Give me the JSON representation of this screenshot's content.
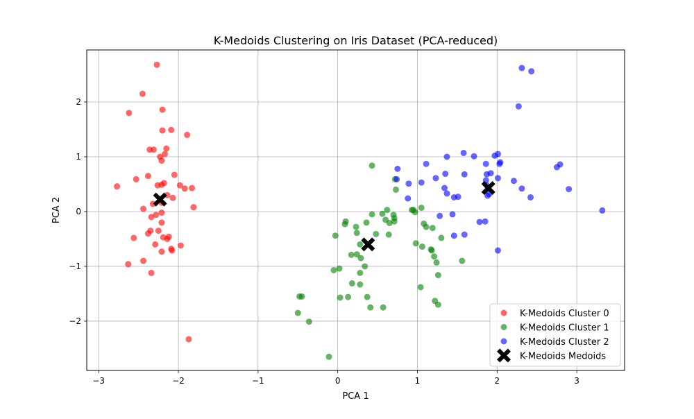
{
  "chart_data": {
    "type": "scatter",
    "title": "K-Medoids Clustering on Iris Dataset (PCA-reduced)",
    "xlabel": "PCA 1",
    "ylabel": "PCA 2",
    "xlim": [
      -3.15,
      3.6
    ],
    "ylim": [
      -2.9,
      2.95
    ],
    "xticks": [
      -3,
      -2,
      -1,
      0,
      1,
      2,
      3
    ],
    "yticks": [
      -2,
      -1,
      0,
      1,
      2
    ],
    "grid": true,
    "legend_position": "lower-right",
    "series": [
      {
        "name": "K-Medoids Cluster 0",
        "color": "#ff0000",
        "marker": "circle",
        "points": [
          [
            -2.27,
            2.68
          ],
          [
            -2.45,
            2.15
          ],
          [
            -2.62,
            1.8
          ],
          [
            -2.2,
            1.86
          ],
          [
            -2.2,
            1.48
          ],
          [
            -2.09,
            1.49
          ],
          [
            -1.89,
            1.4
          ],
          [
            -2.36,
            1.13
          ],
          [
            -2.31,
            1.13
          ],
          [
            -2.15,
            1.15
          ],
          [
            -2.17,
            1.05
          ],
          [
            -2.23,
            1.0
          ],
          [
            -2.21,
            0.93
          ],
          [
            -2.38,
            0.65
          ],
          [
            -2.05,
            0.67
          ],
          [
            -2.53,
            0.59
          ],
          [
            -2.77,
            0.46
          ],
          [
            -2.18,
            0.52
          ],
          [
            -2.21,
            0.49
          ],
          [
            -2.26,
            0.48
          ],
          [
            -1.98,
            0.48
          ],
          [
            -1.92,
            0.42
          ],
          [
            -1.83,
            0.43
          ],
          [
            -2.14,
            0.3
          ],
          [
            -2.07,
            0.25
          ],
          [
            -2.21,
            0.16
          ],
          [
            -2.32,
            0.14
          ],
          [
            -1.81,
            0.08
          ],
          [
            -2.44,
            0.05
          ],
          [
            -2.21,
            -0.02
          ],
          [
            -2.28,
            -0.06
          ],
          [
            -2.34,
            -0.1
          ],
          [
            -2.21,
            -0.2
          ],
          [
            -2.25,
            -0.35
          ],
          [
            -2.35,
            -0.35
          ],
          [
            -2.38,
            -0.4
          ],
          [
            -2.56,
            -0.48
          ],
          [
            -2.19,
            -0.47
          ],
          [
            -2.12,
            -0.46
          ],
          [
            -2.14,
            -0.5
          ],
          [
            -2.29,
            -0.6
          ],
          [
            -1.97,
            -0.62
          ],
          [
            -2.09,
            -0.68
          ],
          [
            -2.08,
            -0.71
          ],
          [
            -2.21,
            -0.73
          ],
          [
            -2.44,
            -0.9
          ],
          [
            -2.63,
            -0.96
          ],
          [
            -2.34,
            -1.12
          ],
          [
            -1.87,
            -2.33
          ]
        ]
      },
      {
        "name": "K-Medoids Cluster 1",
        "color": "#008000",
        "marker": "circle",
        "points": [
          [
            0.43,
            0.84
          ],
          [
            0.72,
            0.59
          ],
          [
            0.73,
            0.4
          ],
          [
            0.62,
            0.03
          ],
          [
            0.95,
            0.03
          ],
          [
            0.93,
            0.03
          ],
          [
            0.97,
            -0.01
          ],
          [
            0.43,
            -0.05
          ],
          [
            0.56,
            -0.04
          ],
          [
            0.7,
            -0.06
          ],
          [
            0.71,
            -0.12
          ],
          [
            0.6,
            -0.15
          ],
          [
            0.65,
            -0.21
          ],
          [
            0.71,
            -0.18
          ],
          [
            1.05,
            0.07
          ],
          [
            1.08,
            -0.22
          ],
          [
            1.11,
            -0.28
          ],
          [
            1.19,
            -0.3
          ],
          [
            0.1,
            -0.18
          ],
          [
            0.09,
            -0.23
          ],
          [
            0.23,
            -0.28
          ],
          [
            0.36,
            -0.2
          ],
          [
            0.24,
            -0.39
          ],
          [
            0.48,
            -0.41
          ],
          [
            0.64,
            -0.42
          ],
          [
            1.3,
            -0.48
          ],
          [
            0.98,
            -0.58
          ],
          [
            0.28,
            -0.6
          ],
          [
            1.06,
            -0.64
          ],
          [
            -0.03,
            -0.44
          ],
          [
            1.17,
            -0.69
          ],
          [
            1.18,
            -0.71
          ],
          [
            0.17,
            -0.79
          ],
          [
            0.24,
            -0.78
          ],
          [
            1.21,
            -0.82
          ],
          [
            0.29,
            -0.85
          ],
          [
            1.24,
            -0.93
          ],
          [
            1.56,
            -0.9
          ],
          [
            0.34,
            -1.0
          ],
          [
            -0.05,
            -1.07
          ],
          [
            0.02,
            -1.04
          ],
          [
            0.28,
            -1.12
          ],
          [
            1.26,
            -1.16
          ],
          [
            0.18,
            -1.31
          ],
          [
            0.28,
            -1.33
          ],
          [
            1.04,
            -1.38
          ],
          [
            -0.45,
            -1.55
          ],
          [
            -0.48,
            -1.55
          ],
          [
            0.03,
            -1.57
          ],
          [
            0.13,
            -1.56
          ],
          [
            0.37,
            -1.56
          ],
          [
            1.22,
            -1.63
          ],
          [
            1.26,
            -1.7
          ],
          [
            0.41,
            -1.75
          ],
          [
            0.57,
            -1.75
          ],
          [
            -0.5,
            -1.85
          ],
          [
            -0.36,
            -2.01
          ],
          [
            -0.11,
            -2.65
          ]
        ]
      },
      {
        "name": "K-Medoids Cluster 2",
        "color": "#0000ff",
        "marker": "circle",
        "points": [
          [
            2.31,
            2.62
          ],
          [
            2.43,
            2.56
          ],
          [
            2.27,
            1.92
          ],
          [
            1.58,
            1.07
          ],
          [
            2.01,
            1.05
          ],
          [
            1.71,
            1.01
          ],
          [
            1.37,
            1.0
          ],
          [
            1.97,
            1.02
          ],
          [
            2.04,
            0.9
          ],
          [
            2.03,
            0.87
          ],
          [
            1.11,
            0.87
          ],
          [
            1.86,
            0.87
          ],
          [
            2.79,
            0.86
          ],
          [
            2.75,
            0.81
          ],
          [
            0.75,
            0.78
          ],
          [
            1.35,
            0.69
          ],
          [
            1.59,
            0.68
          ],
          [
            1.87,
            0.68
          ],
          [
            1.92,
            0.7
          ],
          [
            1.23,
            0.61
          ],
          [
            0.74,
            0.59
          ],
          [
            1.86,
            0.57
          ],
          [
            2.01,
            0.61
          ],
          [
            2.21,
            0.56
          ],
          [
            1.05,
            0.53
          ],
          [
            0.89,
            0.51
          ],
          [
            1.87,
            0.48
          ],
          [
            1.34,
            0.43
          ],
          [
            2.31,
            0.42
          ],
          [
            2.9,
            0.41
          ],
          [
            1.37,
            0.33
          ],
          [
            1.9,
            0.32
          ],
          [
            1.88,
            0.29
          ],
          [
            1.46,
            0.26
          ],
          [
            1.51,
            0.27
          ],
          [
            2.42,
            0.26
          ],
          [
            0.88,
            0.24
          ],
          [
            3.32,
            0.02
          ],
          [
            1.44,
            -0.05
          ],
          [
            1.28,
            -0.08
          ],
          [
            1.78,
            -0.19
          ],
          [
            1.85,
            -0.18
          ],
          [
            1.46,
            -0.44
          ],
          [
            1.59,
            -0.42
          ],
          [
            2.01,
            -0.71
          ]
        ]
      },
      {
        "name": "K-Medoids Medoids",
        "color": "#000000",
        "marker": "x-filled",
        "points": [
          [
            -2.23,
            0.22
          ],
          [
            0.38,
            -0.6
          ],
          [
            1.89,
            0.43
          ]
        ]
      }
    ]
  }
}
